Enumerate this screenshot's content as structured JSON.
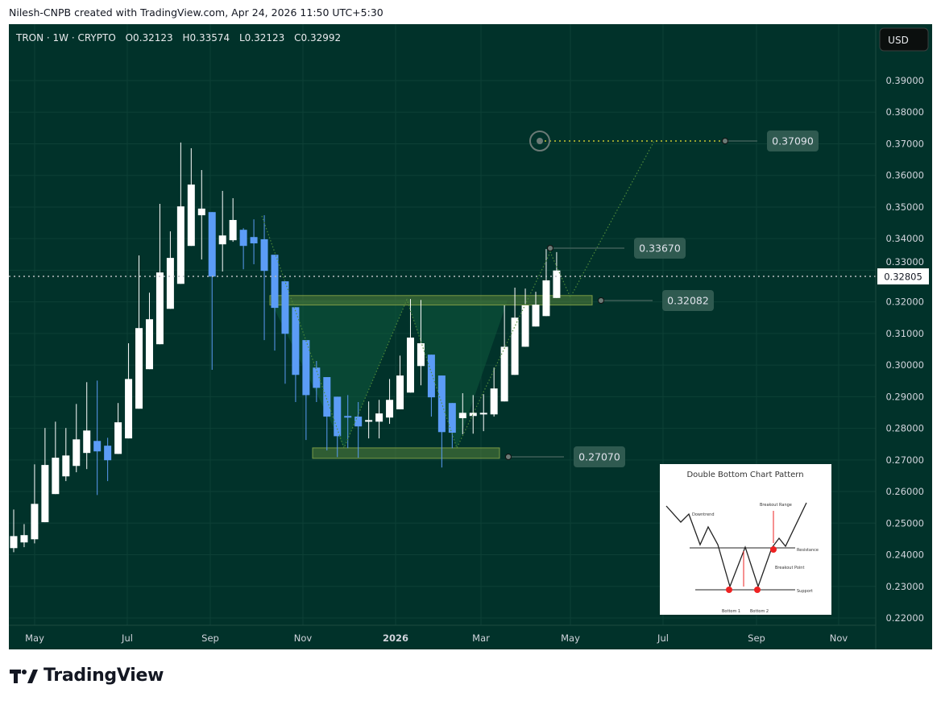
{
  "credit": "Nilesh-CNPB created with TradingView.com, Apr 24, 2026 11:50 UTC+5:30",
  "legend": {
    "symbol": "TRON · 1W · CRYPTO",
    "open": "O0.32123",
    "high": "H0.33574",
    "low": "L0.32123",
    "close": "C0.32992"
  },
  "currency_button": "USD",
  "brand": "TradingView",
  "colors": {
    "background": "#01322a",
    "up": "#ffffff",
    "down": "#5b9cf6",
    "zone": "#4f7a3a",
    "target_line": "#c8c832"
  },
  "chart_data": {
    "type": "candlestick",
    "interval": "1W",
    "y_ticks": [
      "0.39000",
      "0.38000",
      "0.37000",
      "0.36000",
      "0.35000",
      "0.34000",
      "0.33000",
      "0.32000",
      "0.31000",
      "0.30000",
      "0.29000",
      "0.28000",
      "0.27000",
      "0.26000",
      "0.25000",
      "0.24000",
      "0.23000",
      "0.22000"
    ],
    "ylim": [
      0.22,
      0.39
    ],
    "x_ticks": [
      "May",
      "Jul",
      "Sep",
      "Nov",
      "2026",
      "Mar",
      "May",
      "Jul",
      "Sep",
      "Nov"
    ],
    "current_price": "0.32805",
    "ohlc": [
      [
        0.2421,
        0.2543,
        0.2408,
        0.2459
      ],
      [
        0.2439,
        0.2497,
        0.2424,
        0.2462
      ],
      [
        0.2449,
        0.2686,
        0.2436,
        0.2561
      ],
      [
        0.2503,
        0.2801,
        0.2503,
        0.2684
      ],
      [
        0.2592,
        0.2821,
        0.2592,
        0.2707
      ],
      [
        0.2648,
        0.2801,
        0.2633,
        0.2714
      ],
      [
        0.2681,
        0.2877,
        0.2661,
        0.2765
      ],
      [
        0.2722,
        0.2946,
        0.2671,
        0.2793
      ],
      [
        0.276,
        0.2951,
        0.2589,
        0.2727
      ],
      [
        0.2745,
        0.277,
        0.2633,
        0.2699
      ],
      [
        0.2719,
        0.288,
        0.2719,
        0.2819
      ],
      [
        0.2768,
        0.3069,
        0.2768,
        0.2956
      ],
      [
        0.2862,
        0.3347,
        0.2862,
        0.3117
      ],
      [
        0.2987,
        0.3229,
        0.2987,
        0.3145
      ],
      [
        0.3066,
        0.351,
        0.3066,
        0.3293
      ],
      [
        0.3178,
        0.3423,
        0.3178,
        0.3339
      ],
      [
        0.3257,
        0.3704,
        0.3257,
        0.3502
      ],
      [
        0.3377,
        0.3686,
        0.3377,
        0.3571
      ],
      [
        0.3474,
        0.3617,
        0.3334,
        0.3495
      ],
      [
        0.3484,
        0.3484,
        0.2985,
        0.328
      ],
      [
        0.3382,
        0.3551,
        0.3296,
        0.341
      ],
      [
        0.3395,
        0.3528,
        0.339,
        0.3459
      ],
      [
        0.3428,
        0.3433,
        0.3303,
        0.3377
      ],
      [
        0.3405,
        0.3461,
        0.3319,
        0.3385
      ],
      [
        0.3398,
        0.3474,
        0.3079,
        0.3298
      ],
      [
        0.3349,
        0.3349,
        0.3046,
        0.3181
      ],
      [
        0.3265,
        0.3265,
        0.2941,
        0.3099
      ],
      [
        0.3183,
        0.3183,
        0.2883,
        0.2969
      ],
      [
        0.3079,
        0.3079,
        0.2763,
        0.2905
      ],
      [
        0.2992,
        0.3013,
        0.2883,
        0.2928
      ],
      [
        0.2962,
        0.2962,
        0.273,
        0.2837
      ],
      [
        0.29,
        0.29,
        0.2709,
        0.2775
      ],
      [
        0.2839,
        0.2905,
        0.2737,
        0.2834
      ],
      [
        0.2837,
        0.2883,
        0.2707,
        0.2806
      ],
      [
        0.2821,
        0.2885,
        0.2768,
        0.2826
      ],
      [
        0.2821,
        0.289,
        0.2768,
        0.2847
      ],
      [
        0.2834,
        0.2956,
        0.2814,
        0.289
      ],
      [
        0.286,
        0.303,
        0.286,
        0.2967
      ],
      [
        0.2913,
        0.3209,
        0.2913,
        0.3087
      ],
      [
        0.2997,
        0.3206,
        0.2936,
        0.3069
      ],
      [
        0.3033,
        0.3033,
        0.2837,
        0.2898
      ],
      [
        0.2967,
        0.2967,
        0.2676,
        0.2788
      ],
      [
        0.288,
        0.288,
        0.2737,
        0.2786
      ],
      [
        0.2832,
        0.2911,
        0.2781,
        0.2849
      ],
      [
        0.2839,
        0.2905,
        0.2783,
        0.2849
      ],
      [
        0.2844,
        0.2908,
        0.2791,
        0.2849
      ],
      [
        0.2844,
        0.2992,
        0.2837,
        0.2926
      ],
      [
        0.2885,
        0.3189,
        0.2885,
        0.3058
      ],
      [
        0.2969,
        0.3245,
        0.2969,
        0.315
      ],
      [
        0.3058,
        0.3242,
        0.3058,
        0.3189
      ],
      [
        0.3122,
        0.3232,
        0.3122,
        0.3191
      ],
      [
        0.3155,
        0.3367,
        0.3155,
        0.3268
      ],
      [
        0.32123,
        0.33574,
        0.32123,
        0.32992
      ]
    ],
    "annotations": {
      "resistance_zone": [
        0.319,
        0.322
      ],
      "support_zone": [
        0.2705,
        0.2738
      ],
      "price_labels": [
        "0.37090",
        "0.33670",
        "0.32082",
        "0.27070"
      ]
    }
  },
  "inset": {
    "title": "Double Bottom Chart Pattern",
    "labels": {
      "downtrend": "Downtrend",
      "breakout_range": "Breakout Range",
      "resistance": "Resistance",
      "breakout_point": "Breakout Point",
      "support": "Support",
      "bottom1": "Bottom 1",
      "bottom2": "Bottom 2"
    }
  }
}
